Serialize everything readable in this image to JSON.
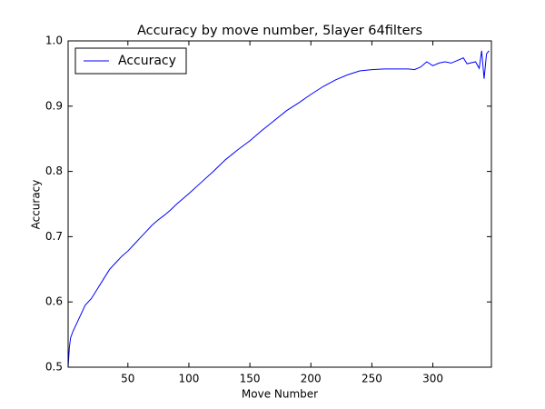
{
  "chart_data": {
    "type": "line",
    "title": "Accuracy by move number, 5layer 64filters",
    "xlabel": "Move Number",
    "ylabel": "Accuracy",
    "xlim": [
      1,
      348
    ],
    "ylim": [
      0.5,
      1.0
    ],
    "xticks": [
      50,
      100,
      150,
      200,
      250,
      300
    ],
    "yticks": [
      0.5,
      0.6,
      0.7,
      0.8,
      0.9,
      {
        "value": 1.0,
        "label": "1.0"
      }
    ],
    "grid": false,
    "legend": "upper left",
    "series": [
      {
        "name": "Accuracy",
        "color": "#0000ff",
        "x": [
          1,
          2,
          3,
          5,
          10,
          15,
          20,
          25,
          30,
          35,
          40,
          45,
          50,
          55,
          60,
          65,
          70,
          75,
          80,
          85,
          90,
          95,
          100,
          110,
          120,
          130,
          140,
          150,
          160,
          170,
          180,
          190,
          200,
          210,
          220,
          230,
          240,
          250,
          260,
          270,
          280,
          285,
          290,
          295,
          300,
          305,
          310,
          315,
          320,
          325,
          328,
          335,
          338,
          340,
          342,
          344,
          346
        ],
        "values": [
          0.5,
          0.53,
          0.545,
          0.555,
          0.575,
          0.595,
          0.605,
          0.62,
          0.635,
          0.65,
          0.66,
          0.67,
          0.678,
          0.688,
          0.698,
          0.708,
          0.718,
          0.726,
          0.733,
          0.741,
          0.75,
          0.758,
          0.766,
          0.783,
          0.8,
          0.818,
          0.833,
          0.847,
          0.863,
          0.878,
          0.893,
          0.905,
          0.918,
          0.93,
          0.94,
          0.948,
          0.954,
          0.956,
          0.957,
          0.957,
          0.957,
          0.956,
          0.96,
          0.968,
          0.962,
          0.966,
          0.968,
          0.966,
          0.97,
          0.974,
          0.965,
          0.968,
          0.958,
          0.985,
          0.942,
          0.98,
          0.985
        ]
      }
    ]
  }
}
